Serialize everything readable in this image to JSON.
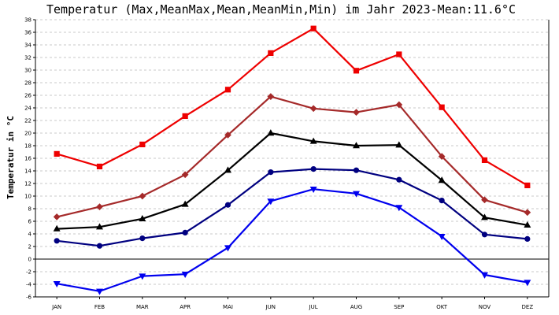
{
  "chart_data": {
    "type": "line",
    "title": "Temperatur (Max,MeanMax,Mean,MeanMin,Min) im Jahr 2023-Mean:11.6°C",
    "ylabel": "Temperatur in °C",
    "xlabel": "",
    "ylim": [
      -6,
      38
    ],
    "ytick_step": 2,
    "grid": true,
    "categories": [
      "JAN",
      "FEB",
      "MAR",
      "APR",
      "MAI",
      "JUN",
      "JUL",
      "AUG",
      "SEP",
      "OKT",
      "NOV",
      "DEZ"
    ],
    "series": [
      {
        "name": "Max",
        "color": "#ee0000",
        "marker": "square",
        "values": [
          16.7,
          14.7,
          18.2,
          22.7,
          26.9,
          32.7,
          36.6,
          29.9,
          32.5,
          24.1,
          15.7,
          11.7
        ]
      },
      {
        "name": "MeanMax",
        "color": "#a52a2a",
        "marker": "diamond",
        "values": [
          6.7,
          8.3,
          10.0,
          13.4,
          19.7,
          25.8,
          23.9,
          23.3,
          24.5,
          16.3,
          9.4,
          7.4
        ]
      },
      {
        "name": "Mean",
        "color": "#000000",
        "marker": "triangle-up",
        "values": [
          4.8,
          5.1,
          6.4,
          8.7,
          14.1,
          20.0,
          18.7,
          18.0,
          18.1,
          12.5,
          6.6,
          5.4
        ]
      },
      {
        "name": "MeanMin",
        "color": "#000080",
        "marker": "circle",
        "values": [
          2.9,
          2.1,
          3.3,
          4.2,
          8.6,
          13.8,
          14.3,
          14.1,
          12.6,
          9.3,
          3.9,
          3.2
        ]
      },
      {
        "name": "Min",
        "color": "#0000ee",
        "marker": "triangle-down",
        "values": [
          -3.9,
          -5.1,
          -2.7,
          -2.4,
          1.8,
          9.2,
          11.1,
          10.4,
          8.2,
          3.6,
          -2.5,
          -3.7
        ]
      }
    ]
  }
}
